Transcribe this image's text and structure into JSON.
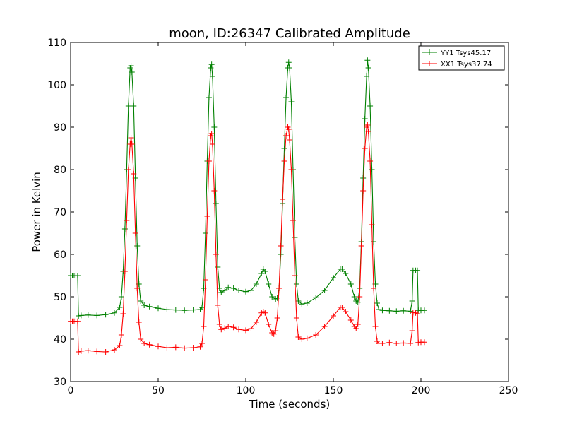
{
  "chart_data": {
    "type": "line",
    "title": "moon, ID:26347 Calibrated Amplitude",
    "xlabel": "Time (seconds)",
    "ylabel": "Power in Kelvin",
    "xlim": [
      0,
      250
    ],
    "ylim": [
      30,
      110
    ],
    "xticks": [
      "0",
      "50",
      "100",
      "150",
      "200",
      "250"
    ],
    "yticks": [
      "30",
      "40",
      "50",
      "60",
      "70",
      "80",
      "90",
      "100",
      "110"
    ],
    "grid": false,
    "legend_position": "top-right",
    "marker": "+",
    "series": [
      {
        "name": "YY1 Tsys45.17",
        "color": "#008000",
        "points": [
          [
            0,
            55
          ],
          [
            1,
            55
          ],
          [
            2,
            55
          ],
          [
            3,
            55
          ],
          [
            4,
            55
          ],
          [
            4.5,
            45.5
          ],
          [
            6,
            45.6
          ],
          [
            10,
            45.7
          ],
          [
            15,
            45.6
          ],
          [
            20,
            45.8
          ],
          [
            25,
            46.2
          ],
          [
            28,
            47.5
          ],
          [
            29,
            50
          ],
          [
            30,
            56
          ],
          [
            31,
            66
          ],
          [
            32,
            80
          ],
          [
            33,
            95
          ],
          [
            34,
            104
          ],
          [
            34.5,
            104.5
          ],
          [
            35,
            103
          ],
          [
            36,
            95
          ],
          [
            37,
            78
          ],
          [
            38,
            62
          ],
          [
            39,
            53
          ],
          [
            40,
            49
          ],
          [
            42,
            48
          ],
          [
            45,
            47.7
          ],
          [
            50,
            47.3
          ],
          [
            55,
            47
          ],
          [
            60,
            46.9
          ],
          [
            65,
            46.8
          ],
          [
            70,
            46.9
          ],
          [
            74,
            47
          ],
          [
            75,
            47.5
          ],
          [
            76,
            52
          ],
          [
            77,
            65
          ],
          [
            78,
            82
          ],
          [
            79,
            97
          ],
          [
            80,
            104
          ],
          [
            80.5,
            104.8
          ],
          [
            81,
            102
          ],
          [
            82,
            90
          ],
          [
            83,
            72
          ],
          [
            84,
            57
          ],
          [
            85,
            52
          ],
          [
            86,
            51
          ],
          [
            88,
            51.5
          ],
          [
            90,
            52.2
          ],
          [
            93,
            52
          ],
          [
            96,
            51.5
          ],
          [
            100,
            51.2
          ],
          [
            103,
            51.5
          ],
          [
            106,
            53
          ],
          [
            109,
            55.5
          ],
          [
            110,
            56.5
          ],
          [
            111,
            56
          ],
          [
            113,
            53
          ],
          [
            115,
            50
          ],
          [
            117,
            49.5
          ],
          [
            118,
            49.7
          ],
          [
            119,
            52
          ],
          [
            120,
            60
          ],
          [
            121,
            72
          ],
          [
            122,
            85
          ],
          [
            123,
            97
          ],
          [
            124,
            104
          ],
          [
            124.5,
            105.3
          ],
          [
            125,
            104
          ],
          [
            126,
            96
          ],
          [
            127,
            80
          ],
          [
            128,
            64
          ],
          [
            129,
            53
          ],
          [
            130,
            49
          ],
          [
            132,
            48.3
          ],
          [
            135,
            48.5
          ],
          [
            140,
            49.8
          ],
          [
            145,
            51.5
          ],
          [
            150,
            54.5
          ],
          [
            154,
            56.5
          ],
          [
            155,
            56.5
          ],
          [
            157,
            55.5
          ],
          [
            160,
            53
          ],
          [
            162,
            50
          ],
          [
            163,
            49
          ],
          [
            164,
            48.7
          ],
          [
            165,
            52
          ],
          [
            166,
            63
          ],
          [
            167,
            78
          ],
          [
            168,
            92
          ],
          [
            169,
            102
          ],
          [
            169.5,
            105.8
          ],
          [
            170,
            104
          ],
          [
            171,
            95
          ],
          [
            172,
            80
          ],
          [
            173,
            63
          ],
          [
            174,
            53
          ],
          [
            175,
            48.5
          ],
          [
            176,
            47
          ],
          [
            178,
            46.8
          ],
          [
            182,
            46.7
          ],
          [
            186,
            46.6
          ],
          [
            190,
            46.7
          ],
          [
            194,
            46.6
          ],
          [
            195,
            49
          ],
          [
            195.5,
            56.2
          ],
          [
            197,
            56.2
          ],
          [
            198,
            56.2
          ],
          [
            198.5,
            46.8
          ],
          [
            200,
            46.8
          ],
          [
            202,
            46.8
          ]
        ]
      },
      {
        "name": "XX1 Tsys37.74",
        "color": "#ff0000",
        "points": [
          [
            0,
            44.2
          ],
          [
            1,
            44.2
          ],
          [
            2,
            44.2
          ],
          [
            3,
            44.2
          ],
          [
            4,
            44.2
          ],
          [
            4.5,
            37
          ],
          [
            6,
            37.2
          ],
          [
            10,
            37.3
          ],
          [
            15,
            37.1
          ],
          [
            20,
            37
          ],
          [
            25,
            37.5
          ],
          [
            28,
            38.5
          ],
          [
            29,
            41
          ],
          [
            30,
            46
          ],
          [
            31,
            56
          ],
          [
            32,
            68
          ],
          [
            33,
            80
          ],
          [
            34,
            86
          ],
          [
            34.5,
            87.5
          ],
          [
            35,
            86
          ],
          [
            36,
            79
          ],
          [
            37,
            65
          ],
          [
            38,
            52
          ],
          [
            39,
            44
          ],
          [
            40,
            40
          ],
          [
            42,
            39
          ],
          [
            45,
            38.7
          ],
          [
            50,
            38.3
          ],
          [
            55,
            38
          ],
          [
            60,
            38.1
          ],
          [
            65,
            37.9
          ],
          [
            70,
            38
          ],
          [
            74,
            38.2
          ],
          [
            75,
            39
          ],
          [
            76,
            43
          ],
          [
            77,
            54
          ],
          [
            78,
            69
          ],
          [
            79,
            82
          ],
          [
            80,
            88
          ],
          [
            80.5,
            88.5
          ],
          [
            81,
            86
          ],
          [
            82,
            75
          ],
          [
            83,
            60
          ],
          [
            84,
            48
          ],
          [
            85,
            43.5
          ],
          [
            86,
            42.3
          ],
          [
            88,
            42.6
          ],
          [
            90,
            43
          ],
          [
            93,
            42.8
          ],
          [
            96,
            42.3
          ],
          [
            100,
            42.1
          ],
          [
            103,
            42.5
          ],
          [
            106,
            44
          ],
          [
            109,
            46.2
          ],
          [
            110,
            46.5
          ],
          [
            111,
            46.2
          ],
          [
            113,
            43.5
          ],
          [
            115,
            41.5
          ],
          [
            116,
            41.2
          ],
          [
            117,
            42
          ],
          [
            118,
            45
          ],
          [
            119,
            52
          ],
          [
            120,
            62
          ],
          [
            121,
            73
          ],
          [
            122,
            82
          ],
          [
            123,
            88
          ],
          [
            124,
            90
          ],
          [
            124.5,
            89.5
          ],
          [
            125,
            87
          ],
          [
            126,
            80
          ],
          [
            127,
            68
          ],
          [
            128,
            55
          ],
          [
            129,
            45
          ],
          [
            130,
            40.5
          ],
          [
            132,
            40
          ],
          [
            135,
            40.2
          ],
          [
            140,
            41
          ],
          [
            145,
            43
          ],
          [
            150,
            45.5
          ],
          [
            154,
            47.5
          ],
          [
            155,
            47.5
          ],
          [
            157,
            46.5
          ],
          [
            160,
            44.5
          ],
          [
            162,
            43
          ],
          [
            163,
            42.5
          ],
          [
            164,
            43.5
          ],
          [
            165,
            50
          ],
          [
            166,
            62
          ],
          [
            167,
            75
          ],
          [
            168,
            85
          ],
          [
            169,
            90
          ],
          [
            169.5,
            90.5
          ],
          [
            170,
            89
          ],
          [
            171,
            82
          ],
          [
            172,
            67
          ],
          [
            173,
            52
          ],
          [
            174,
            43
          ],
          [
            175,
            39.5
          ],
          [
            176,
            39
          ],
          [
            178,
            39
          ],
          [
            182,
            39.2
          ],
          [
            186,
            39
          ],
          [
            190,
            39.1
          ],
          [
            194,
            39
          ],
          [
            195,
            42
          ],
          [
            195.5,
            46.3
          ],
          [
            197,
            46.2
          ],
          [
            198,
            46
          ],
          [
            198.5,
            39.2
          ],
          [
            200,
            39.3
          ],
          [
            202,
            39.3
          ]
        ]
      }
    ]
  }
}
